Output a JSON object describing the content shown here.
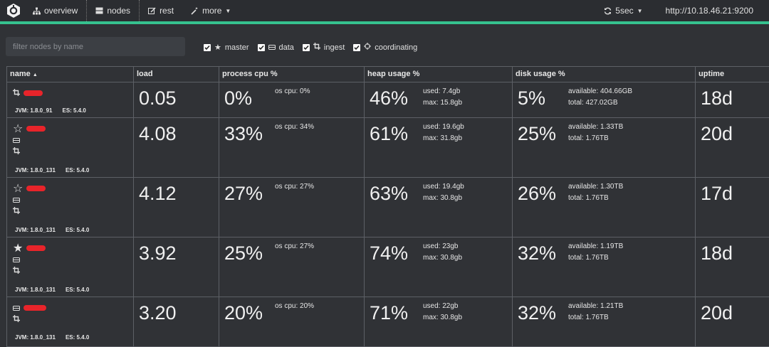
{
  "nav": {
    "overview": "overview",
    "nodes": "nodes",
    "rest": "rest",
    "more": "more",
    "refresh": "5sec",
    "host": "http://10.18.46.21:9200"
  },
  "filter": {
    "placeholder": "filter nodes by name"
  },
  "checks": {
    "master": "master",
    "data": "data",
    "ingest": "ingest",
    "coordinating": "coordinating"
  },
  "headers": {
    "name": "name",
    "load": "load",
    "cpu": "process cpu %",
    "heap": "heap usage %",
    "disk": "disk usage %",
    "uptime": "uptime"
  },
  "rows": [
    {
      "load": "0.05",
      "cpu": "0%",
      "oscpu": "os cpu: 0%",
      "heap": "46%",
      "heap_used": "used: 7.4gb",
      "heap_max": "max: 15.8gb",
      "disk": "5%",
      "disk_avail": "available: 404.66GB",
      "disk_total": "total: 427.02GB",
      "uptime": "18d",
      "jvm": "JVM: 1.8.0_91",
      "es": "ES: 5.4.0"
    },
    {
      "load": "4.08",
      "cpu": "33%",
      "oscpu": "os cpu: 34%",
      "heap": "61%",
      "heap_used": "used: 19.6gb",
      "heap_max": "max: 31.8gb",
      "disk": "25%",
      "disk_avail": "available: 1.33TB",
      "disk_total": "total: 1.76TB",
      "uptime": "20d",
      "jvm": "JVM: 1.8.0_131",
      "es": "ES: 5.4.0"
    },
    {
      "load": "4.12",
      "cpu": "27%",
      "oscpu": "os cpu: 27%",
      "heap": "63%",
      "heap_used": "used: 19.4gb",
      "heap_max": "max: 30.8gb",
      "disk": "26%",
      "disk_avail": "available: 1.30TB",
      "disk_total": "total: 1.76TB",
      "uptime": "17d",
      "jvm": "JVM: 1.8.0_131",
      "es": "ES: 5.4.0"
    },
    {
      "load": "3.92",
      "cpu": "25%",
      "oscpu": "os cpu: 27%",
      "heap": "74%",
      "heap_used": "used: 23gb",
      "heap_max": "max: 30.8gb",
      "disk": "32%",
      "disk_avail": "available: 1.19TB",
      "disk_total": "total: 1.76TB",
      "uptime": "18d",
      "jvm": "JVM: 1.8.0_131",
      "es": "ES: 5.4.0"
    },
    {
      "load": "3.20",
      "cpu": "20%",
      "oscpu": "os cpu: 20%",
      "heap": "71%",
      "heap_used": "used: 22gb",
      "heap_max": "max: 30.8gb",
      "disk": "32%",
      "disk_avail": "available: 1.21TB",
      "disk_total": "total: 1.76TB",
      "uptime": "20d",
      "jvm": "JVM: 1.8.0_131",
      "es": "ES: 5.4.0"
    }
  ]
}
